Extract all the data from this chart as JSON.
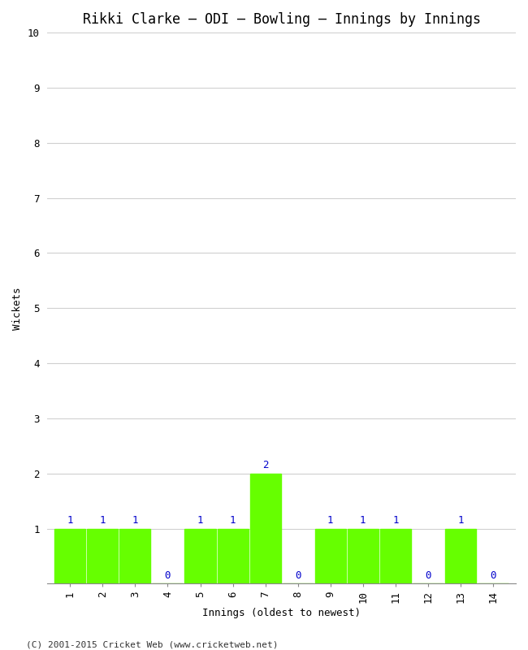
{
  "title": "Rikki Clarke – ODI – Bowling – Innings by Innings",
  "xlabel": "Innings (oldest to newest)",
  "ylabel": "Wickets",
  "innings": [
    1,
    2,
    3,
    4,
    5,
    6,
    7,
    8,
    9,
    10,
    11,
    12,
    13,
    14
  ],
  "wickets": [
    1,
    1,
    1,
    0,
    1,
    1,
    2,
    0,
    1,
    1,
    1,
    0,
    1,
    0
  ],
  "bar_color": "#66ff00",
  "label_color": "#0000cc",
  "ylim": [
    0,
    10
  ],
  "yticks": [
    1,
    2,
    3,
    4,
    5,
    6,
    7,
    8,
    9,
    10
  ],
  "background_color": "#ffffff",
  "plot_bg_color": "#ffffff",
  "footer": "(C) 2001-2015 Cricket Web (www.cricketweb.net)",
  "title_fontsize": 12,
  "label_fontsize": 9,
  "tick_fontsize": 9,
  "footer_fontsize": 8,
  "bar_width": 0.95
}
